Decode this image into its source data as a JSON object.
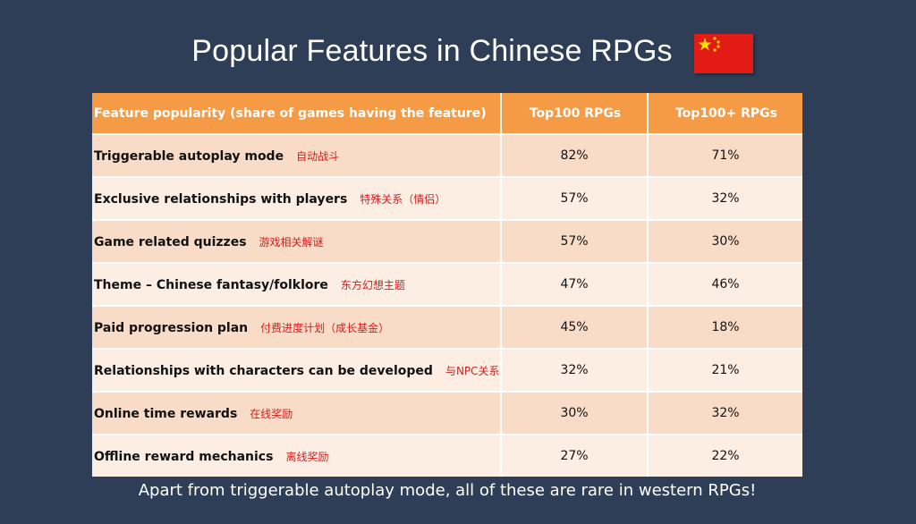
{
  "title": "Popular Features in Chinese RPGs",
  "flag_icon": "china-flag-icon",
  "colors": {
    "background": "#2e3e57",
    "header": "#f59b45",
    "row_odd": "#f9dcc8",
    "row_even": "#fdeee4",
    "chinese_text": "#d21e1e"
  },
  "chart_data": {
    "type": "table",
    "title": "Popular Features in Chinese RPGs",
    "columns": [
      "Feature popularity (share of games having the feature)",
      "Top100 RPGs",
      "Top100+ RPGs"
    ],
    "rows": [
      {
        "feature": "Triggerable autoplay mode",
        "chinese": "自动战斗",
        "top100": "82%",
        "top100plus": "71%"
      },
      {
        "feature": "Exclusive relationships with players",
        "chinese": "特殊关系（情侣）",
        "top100": "57%",
        "top100plus": "32%"
      },
      {
        "feature": "Game related quizzes",
        "chinese": "游戏相关解谜",
        "top100": "57%",
        "top100plus": "30%"
      },
      {
        "feature": "Theme – Chinese fantasy/folklore",
        "chinese": "东方幻想主题",
        "top100": "47%",
        "top100plus": "46%"
      },
      {
        "feature": "Paid progression plan",
        "chinese": "付费进度计划（成长基金）",
        "top100": "45%",
        "top100plus": "18%"
      },
      {
        "feature": "Relationships with characters can be developed",
        "chinese": "与NPC关系",
        "top100": "32%",
        "top100plus": "21%"
      },
      {
        "feature": "Online time rewards",
        "chinese": "在线奖励",
        "top100": "30%",
        "top100plus": "32%"
      },
      {
        "feature": "Offline reward mechanics",
        "chinese": "离线奖励",
        "top100": "27%",
        "top100plus": "22%"
      }
    ]
  },
  "footnote": "Apart from triggerable autoplay mode, all of these are rare in western RPGs!"
}
